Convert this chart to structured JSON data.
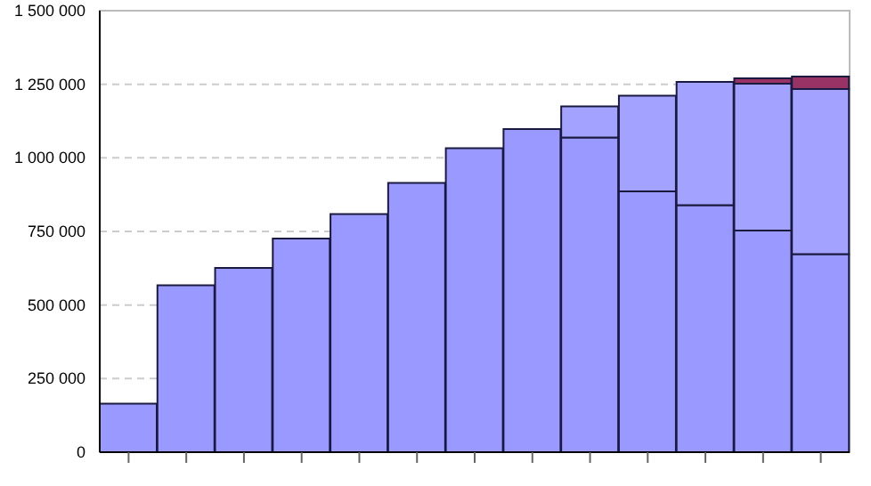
{
  "chart_data": {
    "type": "bar",
    "stacked": true,
    "categories": [
      null,
      null,
      null,
      null,
      null,
      null,
      null,
      null,
      null,
      null,
      null,
      null,
      null
    ],
    "series": [
      {
        "color": "#9999ff",
        "values": [
          165000,
          567000,
          626000,
          726000,
          809000,
          915000,
          1033000,
          1098000,
          1069000,
          886000,
          839000,
          753000,
          673000
        ]
      },
      {
        "color": "#a3a3ff",
        "values": [
          null,
          null,
          null,
          null,
          null,
          null,
          null,
          null,
          106000,
          325000,
          419000,
          499000,
          561000
        ]
      },
      {
        "color": "#993366",
        "values": [
          null,
          null,
          null,
          null,
          null,
          null,
          null,
          null,
          null,
          null,
          null,
          18000,
          42000
        ]
      }
    ],
    "ylim": [
      0,
      1500000
    ],
    "yticks": [
      0,
      250000,
      500000,
      750000,
      1000000,
      1250000,
      1500000
    ],
    "grid": "y",
    "legend": false
  }
}
